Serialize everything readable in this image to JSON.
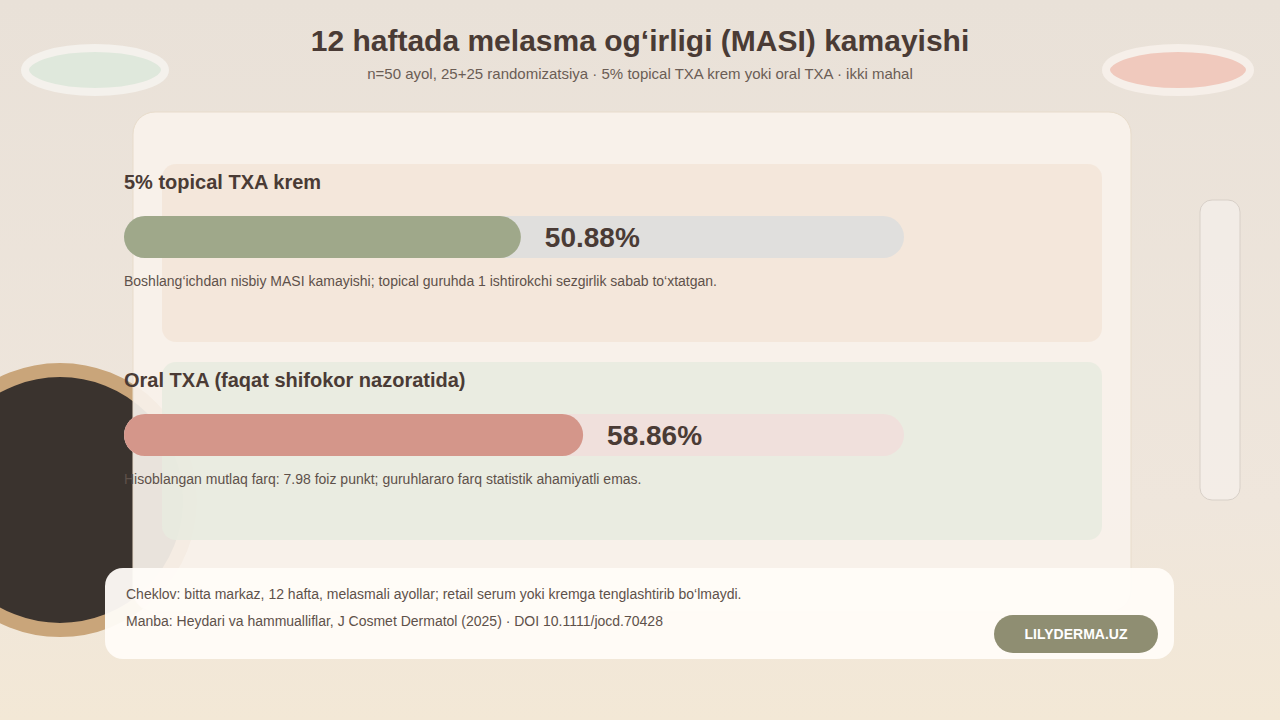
{
  "chart_data": {
    "type": "bar",
    "orientation": "horizontal",
    "title": "12 haftada melasma og‘irligi (MASI) kamayishi",
    "subtitle": "n=50 ayol, 25+25 randomizatsiya · 5% topical TXA krem yoki oral TXA · ikki mahal",
    "categories": [
      "5% topical TXA krem",
      "Oral TXA (faqat shifokor nazoratida)"
    ],
    "values": [
      50.88,
      58.86
    ],
    "value_labels": [
      "50.88%",
      "58.86%"
    ],
    "colors": [
      "#9fa88a",
      "#d4968a"
    ],
    "xlim": [
      0,
      100
    ],
    "data_labels": true,
    "tick_labels": false,
    "annotations": [
      "Boshlang‘ichdan nisbiy MASI kamayishi; topical guruhda 1 ishtirokchi sezgirlik sabab to‘xtatgan.",
      "Hisoblangan mutlaq farq: 7.98 foiz punkt; guruhlararo farq statistik ahamiyatli emas.",
      "Cheklov: bitta markaz, 12 hafta, melasmali ayollar; retail serum yoki kremga tenglashtirib bo‘lmaydi.",
      "Manba: Heydari va hammualliflar, J Cosmet Dermatol (2025) · DOI 10.1111/jocd.70428",
      "LILYDERMA.UZ"
    ]
  }
}
